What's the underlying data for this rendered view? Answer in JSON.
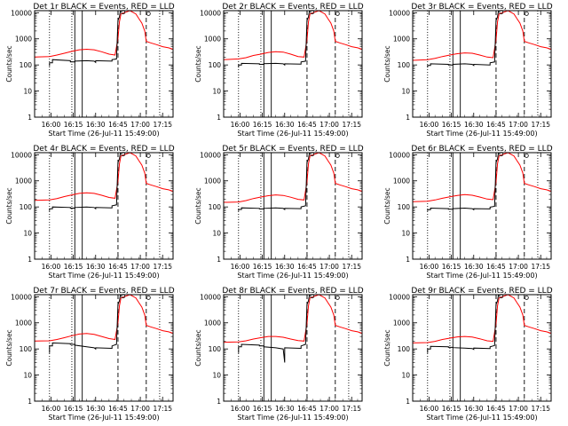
{
  "chart_data": {
    "type": "line",
    "layout": "3x3 grid",
    "x_axis": {
      "label": "Start Time (26-Jul-11 15:49:00)",
      "range_minutes_after_start": [
        0,
        93
      ],
      "tick_labels": [
        "16:00",
        "16:15",
        "16:30",
        "16:45",
        "17:00",
        "17:15"
      ],
      "tick_values_minutes_after_start": [
        11,
        26,
        41,
        56,
        71,
        86
      ],
      "tick_times": [
        "16:00",
        "16:15",
        "16:30",
        "16:45",
        "17:00",
        "17:15"
      ]
    },
    "y_axis": {
      "label": "Counts/sec",
      "scale": "log",
      "range": [
        1,
        12000
      ],
      "tick_labels": [
        "1",
        "10",
        "100",
        "1000",
        "10000"
      ],
      "tick_values": [
        1,
        10,
        100,
        1000,
        10000
      ]
    },
    "series_colors": {
      "events": "#000000",
      "lld": "#ff0000"
    },
    "panels": [
      {
        "title": "Det 1r BLACK = Events, RED = LLD",
        "vlines_dotted": [
          10,
          25,
          84
        ],
        "vlines_solid": [
          27,
          32
        ],
        "vlines_dashed": [
          56,
          75
        ],
        "events": {
          "x": [
            10,
            10,
            12,
            12,
            24,
            24,
            27,
            27,
            35,
            40,
            41,
            41,
            52,
            52,
            55,
            56,
            57,
            57.5,
            58
          ],
          "y": [
            90,
            120,
            120,
            160,
            145,
            130,
            130,
            140,
            145,
            140,
            125,
            145,
            140,
            160,
            170,
            5000,
            7000,
            11000,
            12000
          ]
        },
        "lld": {
          "x": [
            0,
            10,
            15,
            20,
            25,
            30,
            35,
            40,
            45,
            50,
            54,
            56,
            57,
            58,
            64,
            68,
            70,
            72,
            74,
            75,
            78,
            82,
            86,
            90,
            93
          ],
          "y": [
            200,
            210,
            240,
            280,
            330,
            380,
            400,
            380,
            320,
            260,
            240,
            1000,
            4500,
            9000,
            12000,
            9000,
            6000,
            4000,
            2000,
            800,
            700,
            600,
            500,
            450,
            400
          ]
        },
        "markers": {
          "x": [
            59.5,
            76.5
          ],
          "y": [
            10500,
            9200
          ]
        }
      },
      {
        "title": "Det 2r BLACK = Events, RED = LLD",
        "vlines_dotted": [
          10,
          25,
          84
        ],
        "vlines_solid": [
          27,
          32
        ],
        "vlines_dashed": [
          56,
          75
        ],
        "events": {
          "x": [
            10,
            10,
            12,
            12,
            24,
            24,
            27,
            27,
            35,
            40,
            41,
            41,
            52,
            52,
            55,
            56,
            57,
            57.5,
            58
          ],
          "y": [
            80,
            100,
            100,
            115,
            110,
            105,
            105,
            112,
            115,
            110,
            100,
            110,
            108,
            130,
            140,
            5000,
            7000,
            11000,
            12000
          ]
        },
        "lld": {
          "x": [
            0,
            10,
            15,
            20,
            25,
            30,
            35,
            40,
            45,
            50,
            54,
            56,
            57,
            58,
            64,
            68,
            70,
            72,
            74,
            75,
            78,
            82,
            86,
            90,
            93
          ],
          "y": [
            160,
            170,
            190,
            230,
            260,
            300,
            320,
            310,
            260,
            210,
            200,
            900,
            4500,
            9000,
            12000,
            9000,
            6000,
            4000,
            2000,
            800,
            700,
            600,
            500,
            450,
            400
          ]
        },
        "markers": {
          "x": [
            59.5,
            76.5
          ],
          "y": [
            10500,
            9200
          ]
        }
      },
      {
        "title": "Det 3r BLACK = Events, RED = LLD",
        "vlines_dotted": [
          10,
          25,
          84
        ],
        "vlines_solid": [
          27,
          32
        ],
        "vlines_dashed": [
          56,
          75
        ],
        "events": {
          "x": [
            10,
            10,
            12,
            12,
            24,
            24,
            27,
            27,
            35,
            40,
            41,
            41,
            52,
            52,
            55,
            56,
            57,
            57.5,
            58
          ],
          "y": [
            80,
            95,
            95,
            110,
            105,
            100,
            100,
            105,
            110,
            105,
            95,
            105,
            100,
            120,
            130,
            5000,
            7000,
            11000,
            12000
          ]
        },
        "lld": {
          "x": [
            0,
            10,
            15,
            20,
            25,
            30,
            35,
            40,
            45,
            50,
            54,
            56,
            57,
            58,
            64,
            68,
            70,
            72,
            74,
            75,
            78,
            82,
            86,
            90,
            93
          ],
          "y": [
            150,
            160,
            180,
            210,
            240,
            270,
            290,
            280,
            240,
            200,
            190,
            900,
            4500,
            9000,
            12000,
            9000,
            6000,
            4000,
            2000,
            800,
            700,
            600,
            500,
            450,
            400
          ]
        },
        "markers": {
          "x": [
            59.5,
            76.5
          ],
          "y": [
            10500,
            9200
          ]
        }
      },
      {
        "title": "Det 4r BLACK = Events, RED = LLD",
        "vlines_dotted": [
          10,
          25,
          84
        ],
        "vlines_solid": [
          27,
          32
        ],
        "vlines_dashed": [
          56,
          75
        ],
        "events": {
          "x": [
            10,
            10,
            12,
            12,
            24,
            24,
            27,
            27,
            35,
            40,
            41,
            41,
            52,
            52,
            55,
            56,
            57,
            57.5,
            58
          ],
          "y": [
            70,
            85,
            85,
            100,
            95,
            90,
            90,
            95,
            100,
            95,
            85,
            95,
            92,
            110,
            120,
            5000,
            7000,
            11000,
            12000
          ]
        },
        "lld": {
          "x": [
            0,
            10,
            15,
            20,
            25,
            30,
            35,
            40,
            45,
            50,
            54,
            56,
            57,
            58,
            64,
            68,
            70,
            72,
            74,
            75,
            78,
            82,
            86,
            90,
            93
          ],
          "y": [
            180,
            185,
            210,
            250,
            290,
            330,
            350,
            330,
            280,
            230,
            215,
            950,
            4500,
            9000,
            12000,
            9000,
            6000,
            4000,
            2000,
            800,
            700,
            600,
            500,
            450,
            400
          ]
        },
        "markers": {
          "x": [
            59.5,
            76.5
          ],
          "y": [
            10500,
            9200
          ]
        }
      },
      {
        "title": "Det 5r BLACK = Events, RED = LLD",
        "vlines_dotted": [
          10,
          25,
          84
        ],
        "vlines_solid": [
          27,
          32
        ],
        "vlines_dashed": [
          56,
          75
        ],
        "events": {
          "x": [
            10,
            10,
            12,
            12,
            24,
            24,
            27,
            27,
            35,
            40,
            41,
            41,
            52,
            52,
            55,
            56,
            57,
            57.5,
            58
          ],
          "y": [
            70,
            80,
            80,
            92,
            88,
            84,
            84,
            88,
            92,
            88,
            80,
            88,
            86,
            100,
            110,
            5000,
            7000,
            11000,
            12000
          ]
        },
        "lld": {
          "x": [
            0,
            10,
            15,
            20,
            25,
            30,
            35,
            40,
            45,
            50,
            54,
            56,
            57,
            58,
            64,
            68,
            70,
            72,
            74,
            75,
            78,
            82,
            86,
            90,
            93
          ],
          "y": [
            150,
            155,
            175,
            210,
            240,
            270,
            290,
            275,
            235,
            195,
            185,
            900,
            4500,
            9000,
            12000,
            9000,
            6000,
            4000,
            2000,
            800,
            700,
            600,
            500,
            450,
            400
          ]
        },
        "markers": {
          "x": [
            59.5,
            76.5
          ],
          "y": [
            10500,
            9200
          ]
        }
      },
      {
        "title": "Det 6r BLACK = Events, RED = LLD",
        "vlines_dotted": [
          10,
          25,
          84
        ],
        "vlines_solid": [
          27,
          32
        ],
        "vlines_dashed": [
          56,
          75
        ],
        "events": {
          "x": [
            10,
            10,
            12,
            12,
            24,
            24,
            27,
            27,
            35,
            40,
            41,
            41,
            52,
            52,
            55,
            56,
            57,
            57.5,
            58
          ],
          "y": [
            70,
            78,
            78,
            90,
            86,
            82,
            82,
            86,
            90,
            86,
            78,
            86,
            84,
            98,
            105,
            5000,
            7000,
            11000,
            12000
          ]
        },
        "lld": {
          "x": [
            0,
            10,
            15,
            20,
            25,
            30,
            35,
            40,
            45,
            50,
            54,
            56,
            57,
            58,
            64,
            68,
            70,
            72,
            74,
            75,
            78,
            82,
            86,
            90,
            93
          ],
          "y": [
            160,
            165,
            185,
            215,
            245,
            275,
            295,
            280,
            240,
            200,
            190,
            900,
            4500,
            9000,
            12000,
            9000,
            6000,
            4000,
            2000,
            800,
            700,
            600,
            500,
            450,
            400
          ]
        },
        "markers": {
          "x": [
            59.5,
            76.5
          ],
          "y": [
            10500,
            9200
          ]
        }
      },
      {
        "title": "Det 7r BLACK = Events, RED = LLD",
        "vlines_dotted": [
          10,
          25,
          84
        ],
        "vlines_solid": [
          27,
          32
        ],
        "vlines_dashed": [
          56,
          75
        ],
        "events": {
          "x": [
            10,
            10,
            12,
            12,
            24,
            24,
            27,
            27,
            35,
            40,
            41,
            41,
            52,
            52,
            55,
            56,
            57,
            57.5,
            58
          ],
          "y": [
            70,
            130,
            130,
            170,
            160,
            150,
            150,
            140,
            120,
            110,
            100,
            110,
            105,
            130,
            150,
            5000,
            7000,
            11000,
            12000
          ]
        },
        "lld": {
          "x": [
            0,
            10,
            15,
            20,
            25,
            30,
            35,
            40,
            45,
            50,
            54,
            56,
            57,
            58,
            64,
            68,
            70,
            72,
            74,
            75,
            78,
            82,
            86,
            90,
            93
          ],
          "y": [
            200,
            205,
            230,
            270,
            320,
            370,
            390,
            360,
            300,
            250,
            230,
            1000,
            4500,
            9000,
            12000,
            9000,
            6000,
            4000,
            2000,
            800,
            700,
            600,
            500,
            450,
            400
          ]
        },
        "markers": {
          "x": [
            59.5,
            76.5
          ],
          "y": [
            10500,
            9200
          ]
        }
      },
      {
        "title": "Det 8r BLACK = Events, RED = LLD",
        "vlines_dotted": [
          10,
          25,
          84
        ],
        "vlines_solid": [
          27,
          32
        ],
        "vlines_dashed": [
          56,
          75
        ],
        "events": {
          "x": [
            10,
            10,
            12,
            12,
            24,
            24,
            27,
            27,
            35,
            40,
            41,
            41,
            52,
            52,
            55,
            56,
            57,
            57.5,
            58
          ],
          "y": [
            70,
            120,
            120,
            150,
            140,
            130,
            130,
            120,
            110,
            100,
            30,
            110,
            105,
            130,
            150,
            5000,
            7000,
            11000,
            12000
          ]
        },
        "lld": {
          "x": [
            0,
            10,
            15,
            20,
            25,
            30,
            35,
            40,
            45,
            50,
            54,
            56,
            57,
            58,
            64,
            68,
            70,
            72,
            74,
            75,
            78,
            82,
            86,
            90,
            93
          ],
          "y": [
            180,
            185,
            205,
            240,
            270,
            300,
            300,
            280,
            240,
            210,
            200,
            950,
            4500,
            9000,
            12000,
            9000,
            6000,
            4000,
            2000,
            800,
            700,
            600,
            500,
            450,
            400
          ]
        },
        "markers": {
          "x": [
            59.5,
            76.5
          ],
          "y": [
            10500,
            9200
          ]
        }
      },
      {
        "title": "Det 9r BLACK = Events, RED = LLD",
        "vlines_dotted": [
          10,
          25,
          84
        ],
        "vlines_solid": [
          27,
          32
        ],
        "vlines_dashed": [
          56,
          75
        ],
        "events": {
          "x": [
            10,
            10,
            12,
            12,
            24,
            24,
            27,
            27,
            35,
            40,
            41,
            41,
            52,
            52,
            55,
            56,
            57,
            57.5,
            58
          ],
          "y": [
            70,
            100,
            100,
            125,
            120,
            115,
            115,
            112,
            108,
            104,
            96,
            108,
            104,
            120,
            135,
            5000,
            7000,
            11000,
            12000
          ]
        },
        "lld": {
          "x": [
            0,
            10,
            15,
            20,
            25,
            30,
            35,
            40,
            45,
            50,
            54,
            56,
            57,
            58,
            64,
            68,
            70,
            72,
            74,
            75,
            78,
            82,
            86,
            90,
            93
          ],
          "y": [
            170,
            175,
            195,
            230,
            260,
            290,
            300,
            285,
            245,
            205,
            195,
            920,
            4500,
            9000,
            12000,
            9000,
            6000,
            4000,
            2000,
            800,
            700,
            600,
            500,
            450,
            400
          ]
        },
        "markers": {
          "x": [
            59.5,
            76.5
          ],
          "y": [
            10500,
            9200
          ]
        }
      }
    ]
  }
}
